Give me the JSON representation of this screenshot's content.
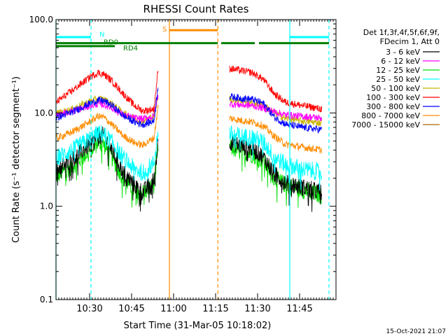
{
  "chart_data": {
    "type": "line",
    "title": "RHESSI Count Rates",
    "xlabel": "Start Time (31-Mar-05 10:18:02)",
    "ylabel": "Count Rate (s⁻¹ detector segment⁻¹)",
    "x_unit": "minutes after 10:18:02",
    "xlim": [
      0,
      100
    ],
    "ylim": [
      0.1,
      100
    ],
    "yscale": "log",
    "x_ticks": [
      {
        "t": 12,
        "label": "10:30"
      },
      {
        "t": 27,
        "label": "10:45"
      },
      {
        "t": 42,
        "label": "11:00"
      },
      {
        "t": 57,
        "label": "11:15"
      },
      {
        "t": 72,
        "label": "11:30"
      },
      {
        "t": 87,
        "label": "11:45"
      }
    ],
    "y_ticks": [
      {
        "v": 0.1,
        "label": "0.1"
      },
      {
        "v": 1,
        "label": "1.0"
      },
      {
        "v": 10,
        "label": "10.0"
      },
      {
        "v": 100,
        "label": "100.0"
      }
    ],
    "legend": {
      "placement": "right",
      "header": [
        "Det 1f,3f,4f,5f,6f,9f,",
        "FDecim 1, Att 0"
      ]
    },
    "series": [
      {
        "name": "3 - 6 keV",
        "color": "#000000",
        "seg1": [
          [
            0,
            2.5
          ],
          [
            6,
            3.2
          ],
          [
            12,
            4.6
          ],
          [
            15,
            5.6
          ],
          [
            17,
            5.8
          ],
          [
            20,
            4.0
          ],
          [
            24,
            2.3
          ],
          [
            28,
            1.7
          ],
          [
            31,
            1.4
          ],
          [
            35,
            1.9
          ],
          [
            36.5,
            5.0
          ]
        ],
        "seg2": [
          [
            62,
            5.0
          ],
          [
            66,
            4.4
          ],
          [
            70,
            4.2
          ],
          [
            74,
            3.4
          ],
          [
            78,
            2.2
          ],
          [
            82,
            1.8
          ],
          [
            88,
            1.6
          ],
          [
            95,
            1.4
          ]
        ]
      },
      {
        "name": "6 - 12 keV",
        "color": "#ff00ff",
        "seg1": [
          [
            0,
            9.3
          ],
          [
            6,
            10.5
          ],
          [
            12,
            11.8
          ],
          [
            15,
            12.5
          ],
          [
            17,
            12.3
          ],
          [
            20,
            11.3
          ],
          [
            24,
            9.5
          ],
          [
            28,
            8.8
          ],
          [
            31,
            8.6
          ],
          [
            35,
            9.2
          ],
          [
            36.5,
            16
          ]
        ],
        "seg2": [
          [
            62,
            12.5
          ],
          [
            66,
            12.2
          ],
          [
            70,
            12.0
          ],
          [
            74,
            11.3
          ],
          [
            78,
            10.3
          ],
          [
            82,
            9.5
          ],
          [
            88,
            9.2
          ],
          [
            95,
            8.8
          ]
        ]
      },
      {
        "name": "12 - 25 keV",
        "color": "#00e000",
        "seg1": [
          [
            0,
            2.1
          ],
          [
            6,
            2.7
          ],
          [
            12,
            3.9
          ],
          [
            15,
            4.8
          ],
          [
            17,
            4.6
          ],
          [
            20,
            3.3
          ],
          [
            24,
            2.0
          ],
          [
            28,
            1.5
          ],
          [
            31,
            1.4
          ],
          [
            35,
            1.7
          ],
          [
            36.5,
            4.5
          ]
        ],
        "seg2": [
          [
            62,
            4.3
          ],
          [
            66,
            3.8
          ],
          [
            70,
            3.6
          ],
          [
            74,
            3.1
          ],
          [
            78,
            2.0
          ],
          [
            82,
            1.7
          ],
          [
            88,
            1.5
          ],
          [
            95,
            1.3
          ]
        ]
      },
      {
        "name": "25 - 50 keV",
        "color": "#00ffff",
        "seg1": [
          [
            0,
            3.3
          ],
          [
            6,
            4.0
          ],
          [
            12,
            5.3
          ],
          [
            15,
            6.0
          ],
          [
            17,
            6.0
          ],
          [
            20,
            4.8
          ],
          [
            24,
            3.3
          ],
          [
            28,
            2.5
          ],
          [
            31,
            2.3
          ],
          [
            35,
            2.9
          ],
          [
            36.5,
            6.5
          ]
        ],
        "seg2": [
          [
            62,
            6.0
          ],
          [
            66,
            5.6
          ],
          [
            70,
            5.5
          ],
          [
            74,
            4.9
          ],
          [
            78,
            3.4
          ],
          [
            82,
            2.8
          ],
          [
            88,
            2.5
          ],
          [
            95,
            2.3
          ]
        ]
      },
      {
        "name": "50 - 100 keV",
        "color": "#c8b400",
        "seg1": [
          [
            0,
            9.8
          ],
          [
            6,
            11.0
          ],
          [
            12,
            13.3
          ],
          [
            15,
            14.2
          ],
          [
            17,
            14.0
          ],
          [
            20,
            12.5
          ],
          [
            24,
            10.0
          ],
          [
            28,
            8.8
          ],
          [
            31,
            8.2
          ],
          [
            35,
            9.3
          ],
          [
            36.5,
            15
          ]
        ],
        "seg2": [
          [
            62,
            14.2
          ],
          [
            66,
            13.6
          ],
          [
            70,
            13.0
          ],
          [
            74,
            12.2
          ],
          [
            78,
            10.0
          ],
          [
            82,
            8.7
          ],
          [
            88,
            8.2
          ],
          [
            95,
            7.8
          ]
        ]
      },
      {
        "name": "100 - 300 keV",
        "color": "#ff0000",
        "seg1": [
          [
            0,
            13
          ],
          [
            6,
            17.5
          ],
          [
            12,
            24
          ],
          [
            15,
            27
          ],
          [
            17,
            26
          ],
          [
            20,
            22
          ],
          [
            24,
            16
          ],
          [
            28,
            12
          ],
          [
            31,
            10.5
          ],
          [
            35,
            11
          ],
          [
            36.5,
            30
          ]
        ],
        "seg2": [
          [
            62,
            30
          ],
          [
            66,
            28.5
          ],
          [
            70,
            27
          ],
          [
            74,
            23
          ],
          [
            78,
            16
          ],
          [
            82,
            13
          ],
          [
            88,
            12
          ],
          [
            95,
            11
          ]
        ]
      },
      {
        "name": "300 - 800 keV",
        "color": "#0000ff",
        "seg1": [
          [
            0,
            8.8
          ],
          [
            6,
            10.3
          ],
          [
            12,
            12.6
          ],
          [
            15,
            13.6
          ],
          [
            17,
            13.5
          ],
          [
            20,
            12
          ],
          [
            24,
            9.4
          ],
          [
            28,
            8.0
          ],
          [
            31,
            7.5
          ],
          [
            35,
            8.2
          ],
          [
            36.5,
            20
          ]
        ],
        "seg2": [
          [
            62,
            15
          ],
          [
            66,
            14.4
          ],
          [
            70,
            14.0
          ],
          [
            74,
            12.7
          ],
          [
            78,
            9.0
          ],
          [
            82,
            7.6
          ],
          [
            88,
            7.0
          ],
          [
            95,
            6.6
          ]
        ]
      },
      {
        "name": "800 - 7000 keV",
        "color": "#ff8c00",
        "seg1": [
          [
            0,
            5.3
          ],
          [
            6,
            6.3
          ],
          [
            12,
            8.0
          ],
          [
            15,
            9.2
          ],
          [
            17,
            9.0
          ],
          [
            20,
            7.5
          ],
          [
            24,
            5.7
          ],
          [
            28,
            4.8
          ],
          [
            31,
            4.5
          ],
          [
            35,
            5.4
          ],
          [
            36.5,
            12
          ]
        ],
        "seg2": [
          [
            62,
            8.8
          ],
          [
            66,
            8.3
          ],
          [
            70,
            8.0
          ],
          [
            74,
            7.3
          ],
          [
            78,
            5.6
          ],
          [
            82,
            4.6
          ],
          [
            88,
            4.3
          ],
          [
            95,
            4.0
          ]
        ]
      },
      {
        "name": "7000 - 15000 keV",
        "color": "#b06400",
        "seg1": [],
        "seg2": []
      }
    ],
    "vlines": [
      {
        "t": 0,
        "color": "#00ffff",
        "dash": false
      },
      {
        "t": 12.5,
        "color": "#00ffff",
        "dash": true
      },
      {
        "t": 40.5,
        "color": "#ff8c00",
        "dash": false
      },
      {
        "t": 57.8,
        "color": "#ff8c00",
        "dash": true
      },
      {
        "t": 83.5,
        "color": "#00ffff",
        "dash": false
      },
      {
        "t": 97.5,
        "color": "#00ffff",
        "dash": true
      }
    ],
    "flags": [
      {
        "label": "N",
        "color": "#00ffff",
        "y": 65,
        "segments": [
          [
            0,
            12.5
          ],
          [
            83.5,
            97.5
          ]
        ]
      },
      {
        "label": "S",
        "color": "#ff8c00",
        "y": 77,
        "segments": [
          [
            40.5,
            57.8
          ]
        ]
      },
      {
        "label": "RD0",
        "color": "#008000",
        "y": 56,
        "segments": [
          [
            0,
            97.5
          ]
        ],
        "gaps": [
          [
            57.8,
            59
          ],
          [
            71,
            72.5
          ]
        ]
      },
      {
        "label": "RD4",
        "color": "#008000",
        "y": 52,
        "segments": [
          [
            0,
            21
          ]
        ]
      }
    ]
  },
  "footer": {
    "timestamp": "15-Oct-2021 21:07"
  }
}
